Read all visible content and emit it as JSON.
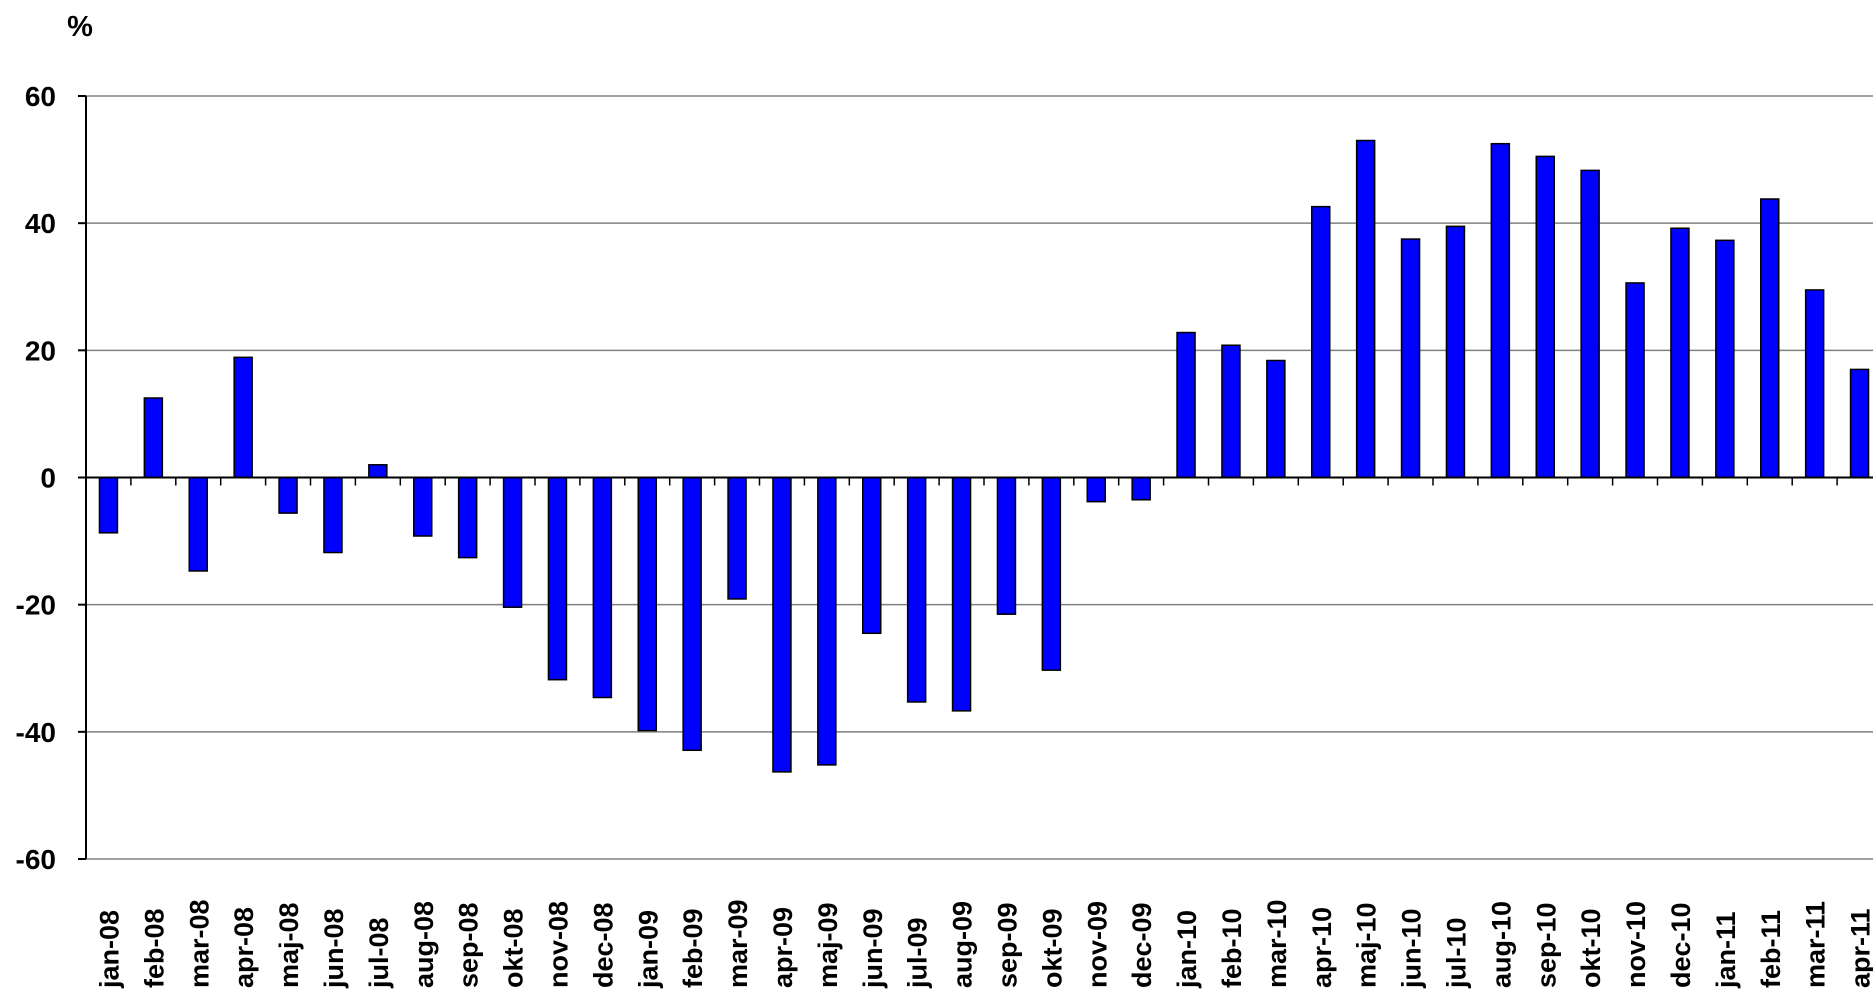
{
  "chart_data": {
    "type": "bar",
    "ylabel": "%",
    "ylim": [
      -60,
      60
    ],
    "yticks": [
      60,
      40,
      20,
      0,
      -20,
      -40,
      -60
    ],
    "grid": true,
    "legend": "none",
    "bar_color": "#0000FF",
    "categories": [
      "jan-08",
      "feb-08",
      "mar-08",
      "apr-08",
      "maj-08",
      "jun-08",
      "jul-08",
      "aug-08",
      "sep-08",
      "okt-08",
      "nov-08",
      "dec-08",
      "jan-09",
      "feb-09",
      "mar-09",
      "apr-09",
      "maj-09",
      "jun-09",
      "jul-09",
      "aug-09",
      "sep-09",
      "okt-09",
      "nov-09",
      "dec-09",
      "jan-10",
      "feb-10",
      "mar-10",
      "apr-10",
      "maj-10",
      "jun-10",
      "jul-10",
      "aug-10",
      "sep-10",
      "okt-10",
      "nov-10",
      "dec-10",
      "jan-11",
      "feb-11",
      "mar-11",
      "apr-11"
    ],
    "values": [
      -8.7,
      12.5,
      -14.7,
      18.9,
      -5.6,
      -11.8,
      2.0,
      -9.2,
      -12.6,
      -20.4,
      -31.8,
      -34.6,
      -39.8,
      -42.9,
      -19.1,
      -46.3,
      -45.2,
      -24.5,
      -35.3,
      -36.7,
      -21.5,
      -30.3,
      -3.8,
      -3.5,
      22.8,
      20.8,
      18.4,
      42.6,
      53.0,
      37.5,
      39.5,
      52.5,
      50.5,
      48.3,
      30.6,
      39.2,
      37.3,
      43.8,
      29.5,
      17.0
    ]
  }
}
